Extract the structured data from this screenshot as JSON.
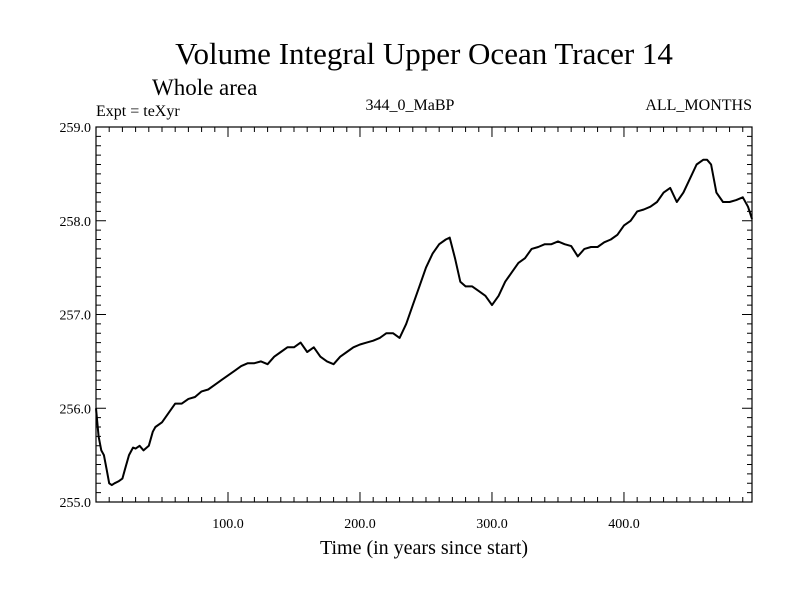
{
  "chart_data": {
    "type": "line",
    "title": "Volume Integral Upper Ocean Tracer 14",
    "subtitle": "Whole area",
    "annotations": {
      "left": "Expt = teXyr",
      "center": "344_0_MaBP",
      "right": "ALL_MONTHS"
    },
    "xlabel": "Time (in years since start)",
    "ylabel": "",
    "xlim": [
      0,
      497
    ],
    "ylim": [
      255.0,
      259.0
    ],
    "x_ticks": [
      100,
      200,
      300,
      400
    ],
    "x_tick_labels": [
      "100.0",
      "200.0",
      "300.0",
      "400.0"
    ],
    "y_ticks": [
      255,
      256,
      257,
      258,
      259
    ],
    "y_tick_labels": [
      "255.0",
      "256.0",
      "257.0",
      "258.0",
      "259.0"
    ],
    "grid": false,
    "line_color": "#000000",
    "series": [
      {
        "x": [
          0,
          2,
          4,
          6,
          8,
          10,
          12,
          14,
          17,
          20,
          22,
          25,
          28,
          30,
          33,
          36,
          40,
          43,
          45,
          50,
          55,
          60,
          65,
          70,
          75,
          80,
          85,
          90,
          95,
          100,
          105,
          110,
          115,
          120,
          125,
          130,
          135,
          140,
          145,
          150,
          155,
          160,
          165,
          170,
          175,
          180,
          185,
          190,
          195,
          200,
          205,
          210,
          215,
          220,
          225,
          230,
          235,
          240,
          245,
          250,
          255,
          260,
          265,
          268,
          272,
          276,
          280,
          285,
          290,
          295,
          300,
          305,
          310,
          315,
          320,
          325,
          330,
          335,
          340,
          345,
          350,
          355,
          360,
          365,
          370,
          375,
          380,
          385,
          390,
          395,
          400,
          405,
          410,
          415,
          420,
          425,
          430,
          435,
          440,
          445,
          450,
          455,
          460,
          463,
          466,
          470,
          475,
          480,
          485,
          490,
          494,
          497
        ],
        "y": [
          256.0,
          255.7,
          255.55,
          255.5,
          255.35,
          255.2,
          255.18,
          255.2,
          255.22,
          255.25,
          255.35,
          255.5,
          255.58,
          255.57,
          255.6,
          255.55,
          255.6,
          255.75,
          255.8,
          255.85,
          255.95,
          256.05,
          256.05,
          256.1,
          256.12,
          256.18,
          256.2,
          256.25,
          256.3,
          256.35,
          256.4,
          256.45,
          256.48,
          256.48,
          256.5,
          256.47,
          256.55,
          256.6,
          256.65,
          256.65,
          256.7,
          256.6,
          256.65,
          256.55,
          256.5,
          256.47,
          256.55,
          256.6,
          256.65,
          256.68,
          256.7,
          256.72,
          256.75,
          256.8,
          256.8,
          256.75,
          256.9,
          257.1,
          257.3,
          257.5,
          257.65,
          257.75,
          257.8,
          257.82,
          257.6,
          257.35,
          257.3,
          257.3,
          257.25,
          257.2,
          257.1,
          257.2,
          257.35,
          257.45,
          257.55,
          257.6,
          257.7,
          257.72,
          257.75,
          257.75,
          257.78,
          257.75,
          257.73,
          257.62,
          257.7,
          257.72,
          257.72,
          257.77,
          257.8,
          257.85,
          257.95,
          258.0,
          258.1,
          258.12,
          258.15,
          258.2,
          258.3,
          258.35,
          258.2,
          258.3,
          258.45,
          258.6,
          258.65,
          258.65,
          258.6,
          258.3,
          258.2,
          258.2,
          258.22,
          258.25,
          258.15,
          258.02
        ]
      }
    ]
  }
}
